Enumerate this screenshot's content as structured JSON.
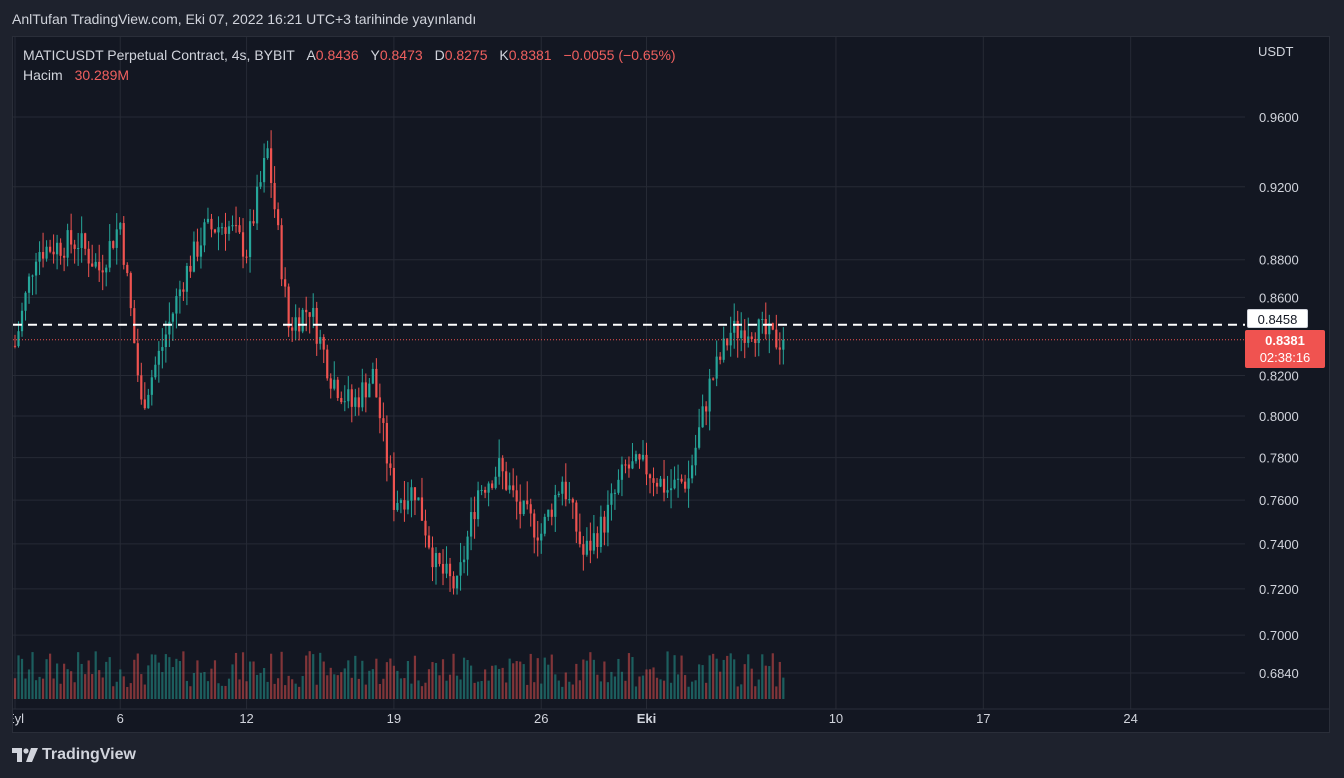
{
  "header": {
    "published": "AnlTufan TradingView.com, Eki 07, 2022 16:21 UTC+3 tarihinde yayınlandı"
  },
  "legend": {
    "symbol": "MATICUSDT Perpetual Contract, 4s, BYBIT",
    "open_label": "A",
    "open": "0.8436",
    "high_label": "Y",
    "high": "0.8473",
    "low_label": "D",
    "low": "0.8275",
    "close_label": "K",
    "close": "0.8381",
    "change": "−0.0055 (−0.65%)",
    "volume_label": "Hacim",
    "volume": "30.289M"
  },
  "axis": {
    "currency": "USDT",
    "price_ticks": [
      "0.9600",
      "0.9200",
      "0.8800",
      "0.8600",
      "0.8200",
      "0.8000",
      "0.7800",
      "0.7600",
      "0.7400",
      "0.7200",
      "0.7000",
      "0.6840"
    ],
    "date_ticks": [
      "Eyl",
      "6",
      "12",
      "19",
      "26",
      "Eki",
      "10",
      "17",
      "24"
    ]
  },
  "tags": {
    "dashed_price": "0.8458",
    "last_price": "0.8381",
    "countdown": "02:38:16"
  },
  "footer": {
    "brand": "TradingView"
  },
  "colors": {
    "up": "#26a69a",
    "down": "#ef5350",
    "background": "#131722",
    "grid": "#262a35"
  },
  "chart_data": {
    "type": "candlestick",
    "symbol": "MATICUSDT Perpetual Contract",
    "exchange": "BYBIT",
    "interval": "4s",
    "x_range": [
      "2022-09-01",
      "2022-09-27"
    ],
    "y_range": [
      0.68,
      0.985
    ],
    "y_scale": "log",
    "horizontal_line": 0.8458,
    "last_price": 0.8381,
    "key_points": [
      {
        "date": "2022-09-01",
        "price": 0.835
      },
      {
        "date": "2022-09-02",
        "price": 0.885
      },
      {
        "date": "2022-09-04",
        "price": 0.89
      },
      {
        "date": "2022-09-05",
        "price": 0.875
      },
      {
        "date": "2022-09-06",
        "price": 0.9
      },
      {
        "date": "2022-09-07",
        "price": 0.805
      },
      {
        "date": "2022-09-08",
        "price": 0.835
      },
      {
        "date": "2022-09-09",
        "price": 0.87
      },
      {
        "date": "2022-09-10",
        "price": 0.895
      },
      {
        "date": "2022-09-11",
        "price": 0.9
      },
      {
        "date": "2022-09-12",
        "price": 0.885
      },
      {
        "date": "2022-09-13",
        "price": 0.94
      },
      {
        "date": "2022-09-14",
        "price": 0.845
      },
      {
        "date": "2022-09-15",
        "price": 0.855
      },
      {
        "date": "2022-09-16",
        "price": 0.82
      },
      {
        "date": "2022-09-17",
        "price": 0.805
      },
      {
        "date": "2022-09-18",
        "price": 0.82
      },
      {
        "date": "2022-09-19",
        "price": 0.76
      },
      {
        "date": "2022-09-20",
        "price": 0.765
      },
      {
        "date": "2022-09-21",
        "price": 0.73
      },
      {
        "date": "2022-09-22",
        "price": 0.72
      },
      {
        "date": "2022-09-23",
        "price": 0.765
      },
      {
        "date": "2022-09-24",
        "price": 0.775
      },
      {
        "date": "2022-09-25",
        "price": 0.755
      },
      {
        "date": "2022-09-26",
        "price": 0.745
      },
      {
        "date": "2022-09-27",
        "price": 0.77
      },
      {
        "date": "2022-09-28",
        "price": 0.735
      },
      {
        "date": "2022-09-29",
        "price": 0.75
      },
      {
        "date": "2022-09-30",
        "price": 0.775
      },
      {
        "date": "2022-10-01",
        "price": 0.775
      },
      {
        "date": "2022-10-02",
        "price": 0.765
      },
      {
        "date": "2022-10-03",
        "price": 0.77
      },
      {
        "date": "2022-10-04",
        "price": 0.815
      },
      {
        "date": "2022-10-05",
        "price": 0.842
      },
      {
        "date": "2022-10-06",
        "price": 0.845
      },
      {
        "date": "2022-10-07",
        "price": 0.838
      }
    ]
  }
}
